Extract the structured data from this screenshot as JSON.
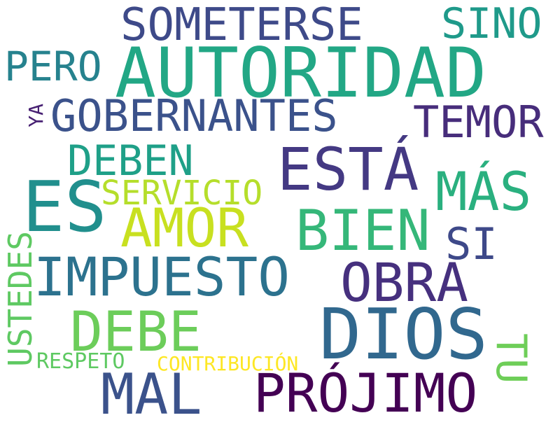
{
  "words": [
    {
      "key": "someterse",
      "text": "SOMETERSE",
      "color": "#3e4a89"
    },
    {
      "key": "sino",
      "text": "SINO",
      "color": "#1f9a8a"
    },
    {
      "key": "pero",
      "text": "PERO",
      "color": "#26828e"
    },
    {
      "key": "autoridad",
      "text": "AUTORIDAD",
      "color": "#22a785"
    },
    {
      "key": "ya",
      "text": "YA",
      "color": "#482173"
    },
    {
      "key": "gobernantes",
      "text": "GOBERNANTES",
      "color": "#3b528b"
    },
    {
      "key": "temor",
      "text": "TEMOR",
      "color": "#472d7b"
    },
    {
      "key": "deben",
      "text": "DEBEN",
      "color": "#1fa088"
    },
    {
      "key": "esta",
      "text": "ESTÁ",
      "color": "#443983"
    },
    {
      "key": "mas",
      "text": "MÁS",
      "color": "#2ab07f"
    },
    {
      "key": "es",
      "text": "ES",
      "color": "#218f8d"
    },
    {
      "key": "servicio",
      "text": "SERVICIO",
      "color": "#b5de2b"
    },
    {
      "key": "amor",
      "text": "AMOR",
      "color": "#c8e020"
    },
    {
      "key": "bien",
      "text": "BIEN",
      "color": "#35b779"
    },
    {
      "key": "si",
      "text": "SI",
      "color": "#3e4989"
    },
    {
      "key": "ustedes",
      "text": "USTEDES",
      "color": "#5ec962"
    },
    {
      "key": "impuesto",
      "text": "IMPUESTO",
      "color": "#2c728e"
    },
    {
      "key": "obra",
      "text": "OBRA",
      "color": "#46307e"
    },
    {
      "key": "dios",
      "text": "DIOS",
      "color": "#31688e"
    },
    {
      "key": "debe",
      "text": "DEBE",
      "color": "#6ccd5a"
    },
    {
      "key": "tu",
      "text": "TU",
      "color": "#6ece58"
    },
    {
      "key": "respeto",
      "text": "RESPETO",
      "color": "#5ec962"
    },
    {
      "key": "contribucion",
      "text": "CONTRIBUCIÓN",
      "color": "#fde725"
    },
    {
      "key": "mal",
      "text": "MAL",
      "color": "#3b528b"
    },
    {
      "key": "projimo",
      "text": "PRÓJIMO",
      "color": "#440154"
    }
  ]
}
